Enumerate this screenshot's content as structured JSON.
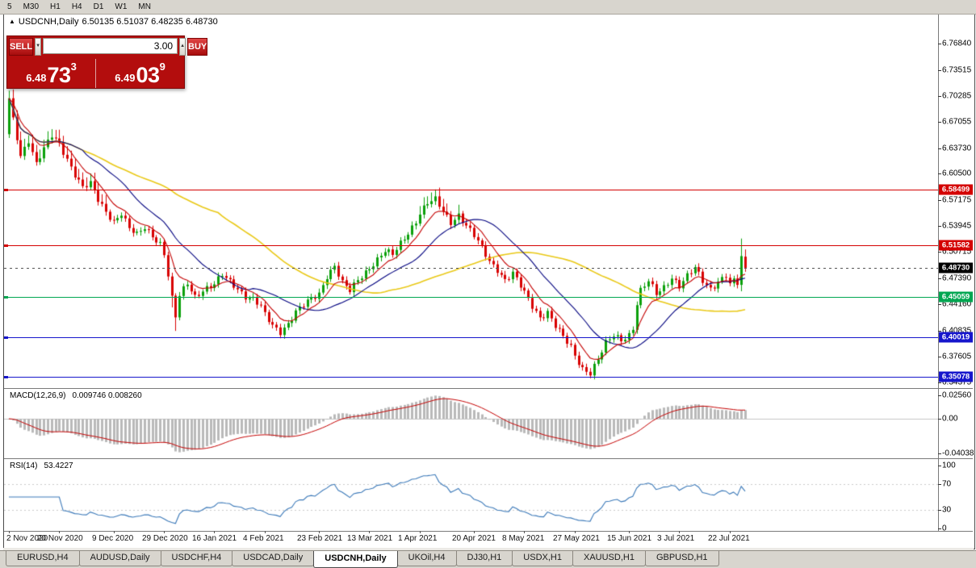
{
  "toolbar": {
    "timeframes": [
      "5",
      "M30",
      "H1",
      "H4",
      "D1",
      "W1",
      "MN"
    ]
  },
  "chart": {
    "title_icon": "▲",
    "title": "USDCNH,Daily",
    "ohlc": "6.50135 6.51037 6.48235 6.48730"
  },
  "trade": {
    "sell_label": "SELL",
    "buy_label": "BUY",
    "volume": "3.00",
    "spinner_down": "▼",
    "spinner_up": "▲",
    "sell_price": {
      "small": "6.48",
      "big": "73",
      "sup": "3"
    },
    "buy_price": {
      "small": "6.49",
      "big": "03",
      "sup": "9"
    }
  },
  "chart_data": {
    "type": "candlestick",
    "symbol": "USDCNH",
    "timeframe": "Daily",
    "title": "USDCNH,Daily 6.50135 6.51037 6.48235 6.48730",
    "candle_count": 191,
    "visible_price_range": [
      6.338,
      6.804
    ],
    "up_color": "#0ba00b",
    "down_color": "#d80000",
    "last_candle": {
      "open": 6.50135,
      "high": 6.51037,
      "low": 6.48235,
      "close": 6.4873
    },
    "prev_candle": {
      "open": 6.466,
      "high": 6.524,
      "low": 6.458,
      "close": 6.502
    },
    "long_lower_wicks": [
      42,
      43
    ],
    "y_axis_ticks": [
      "6.76840",
      "6.73515",
      "6.70285",
      "6.67055",
      "6.63730",
      "6.60500",
      "6.57175",
      "6.53945",
      "6.50715",
      "6.47390",
      "6.44160",
      "6.40835",
      "6.37605",
      "6.34375"
    ],
    "x_axis_labels": [
      {
        "label": "2 Nov 2020",
        "index": 0
      },
      {
        "label": "20 Nov 2020",
        "index": 13
      },
      {
        "label": "9 Dec 2020",
        "index": 27
      },
      {
        "label": "29 Dec 2020",
        "index": 40
      },
      {
        "label": "16 Jan 2021",
        "index": 53
      },
      {
        "label": "4 Feb 2021",
        "index": 66
      },
      {
        "label": "23 Feb 2021",
        "index": 80
      },
      {
        "label": "13 Mar 2021",
        "index": 93
      },
      {
        "label": "1 Apr 2021",
        "index": 106
      },
      {
        "label": "20 Apr 2021",
        "index": 120
      },
      {
        "label": "8 May 2021",
        "index": 133
      },
      {
        "label": "27 May 2021",
        "index": 146
      },
      {
        "label": "15 Jun 2021",
        "index": 160
      },
      {
        "label": "3 Jul 2021",
        "index": 173
      },
      {
        "label": "22 Jul 2021",
        "index": 186
      }
    ],
    "levels": [
      {
        "price": 6.58499,
        "label": "6.58499",
        "color": "#d40000",
        "type": "resistance"
      },
      {
        "price": 6.51582,
        "label": "6.51582",
        "color": "#d40000",
        "type": "resistance"
      },
      {
        "price": 6.45059,
        "label": "6.45059",
        "color": "#00a651",
        "type": "support"
      },
      {
        "price": 6.40019,
        "label": "6.40019",
        "color": "#1616cc",
        "type": "support"
      },
      {
        "price": 6.35078,
        "label": "6.35078",
        "color": "#1616cc",
        "type": "support"
      }
    ],
    "current_price": {
      "price": 6.4873,
      "label": "6.48730",
      "color": "#000000"
    },
    "moving_averages": [
      {
        "period": 55,
        "method": "sma",
        "color": "#e9c816"
      },
      {
        "period": 20,
        "method": "sma",
        "color": "#00007f"
      },
      {
        "period": 8,
        "method": "ema",
        "color": "#c40000"
      }
    ],
    "price_path_anchors": [
      [
        0,
        6.698
      ],
      [
        1,
        6.672
      ],
      [
        3,
        6.628
      ],
      [
        5,
        6.648
      ],
      [
        7,
        6.618
      ],
      [
        9,
        6.636
      ],
      [
        11,
        6.652
      ],
      [
        13,
        6.642
      ],
      [
        15,
        6.624
      ],
      [
        17,
        6.605
      ],
      [
        19,
        6.588
      ],
      [
        21,
        6.592
      ],
      [
        23,
        6.572
      ],
      [
        25,
        6.558
      ],
      [
        27,
        6.546
      ],
      [
        29,
        6.556
      ],
      [
        31,
        6.536
      ],
      [
        33,
        6.528
      ],
      [
        35,
        6.538
      ],
      [
        37,
        6.528
      ],
      [
        39,
        6.518
      ],
      [
        40,
        6.505
      ],
      [
        41,
        6.478
      ],
      [
        42,
        6.448
      ],
      [
        43,
        6.425
      ],
      [
        44,
        6.452
      ],
      [
        46,
        6.468
      ],
      [
        48,
        6.452
      ],
      [
        50,
        6.46
      ],
      [
        53,
        6.466
      ],
      [
        55,
        6.478
      ],
      [
        57,
        6.47
      ],
      [
        59,
        6.462
      ],
      [
        61,
        6.452
      ],
      [
        63,
        6.448
      ],
      [
        65,
        6.438
      ],
      [
        66,
        6.428
      ],
      [
        68,
        6.415
      ],
      [
        70,
        6.408
      ],
      [
        72,
        6.418
      ],
      [
        74,
        6.432
      ],
      [
        76,
        6.44
      ],
      [
        78,
        6.448
      ],
      [
        80,
        6.455
      ],
      [
        82,
        6.478
      ],
      [
        84,
        6.49
      ],
      [
        86,
        6.468
      ],
      [
        88,
        6.458
      ],
      [
        90,
        6.472
      ],
      [
        93,
        6.488
      ],
      [
        95,
        6.498
      ],
      [
        97,
        6.508
      ],
      [
        99,
        6.503
      ],
      [
        101,
        6.518
      ],
      [
        103,
        6.532
      ],
      [
        105,
        6.546
      ],
      [
        106,
        6.556
      ],
      [
        108,
        6.568
      ],
      [
        110,
        6.572
      ],
      [
        112,
        6.558
      ],
      [
        114,
        6.545
      ],
      [
        116,
        6.554
      ],
      [
        118,
        6.54
      ],
      [
        120,
        6.527
      ],
      [
        122,
        6.512
      ],
      [
        124,
        6.496
      ],
      [
        126,
        6.486
      ],
      [
        128,
        6.472
      ],
      [
        130,
        6.48
      ],
      [
        133,
        6.456
      ],
      [
        135,
        6.44
      ],
      [
        137,
        6.426
      ],
      [
        139,
        6.432
      ],
      [
        141,
        6.414
      ],
      [
        143,
        6.4
      ],
      [
        145,
        6.388
      ],
      [
        146,
        6.378
      ],
      [
        148,
        6.362
      ],
      [
        150,
        6.356
      ],
      [
        152,
        6.372
      ],
      [
        154,
        6.392
      ],
      [
        156,
        6.403
      ],
      [
        158,
        6.398
      ],
      [
        160,
        6.404
      ],
      [
        161,
        6.412
      ],
      [
        162,
        6.442
      ],
      [
        163,
        6.458
      ],
      [
        165,
        6.47
      ],
      [
        167,
        6.455
      ],
      [
        169,
        6.464
      ],
      [
        171,
        6.476
      ],
      [
        173,
        6.464
      ],
      [
        175,
        6.476
      ],
      [
        177,
        6.487
      ],
      [
        179,
        6.472
      ],
      [
        181,
        6.462
      ],
      [
        183,
        6.47
      ],
      [
        185,
        6.477
      ],
      [
        186,
        6.468
      ],
      [
        187,
        6.474
      ],
      [
        188,
        6.466
      ],
      [
        189,
        6.502
      ],
      [
        190,
        6.4873
      ]
    ]
  },
  "macd": {
    "label": "MACD(12,26,9)",
    "values": "0.009746 0.008260",
    "params": [
      12,
      26,
      9
    ],
    "axis_ticks": [
      "0.02560",
      "0.00",
      "-0.04038"
    ]
  },
  "rsi": {
    "label": "RSI(14)",
    "value": "53.4227",
    "period": 14,
    "levels": [
      70,
      30
    ],
    "axis_ticks": [
      "100",
      "70",
      "30",
      "0"
    ]
  },
  "tabs": [
    {
      "label": "EURUSD,H4",
      "active": false
    },
    {
      "label": "AUDUSD,Daily",
      "active": false
    },
    {
      "label": "USDCHF,H4",
      "active": false
    },
    {
      "label": "USDCAD,Daily",
      "active": false
    },
    {
      "label": "USDCNH,Daily",
      "active": true
    },
    {
      "label": "UKOil,H4",
      "active": false
    },
    {
      "label": "DJ30,H1",
      "active": false
    },
    {
      "label": "USDX,H1",
      "active": false
    },
    {
      "label": "XAUUSD,H1",
      "active": false
    },
    {
      "label": "GBPUSD,H1",
      "active": false
    }
  ]
}
